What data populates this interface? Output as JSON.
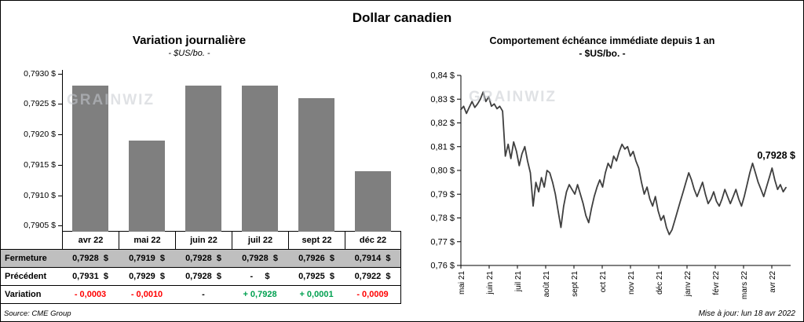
{
  "page": {
    "title": "Dollar canadien",
    "watermark": "GRAINWIZ",
    "source": "Source: CME Group",
    "updated": "Mise à jour: lun 18 avr 2022"
  },
  "colors": {
    "bar": "#7f7f7f",
    "line": "#3f3f3f",
    "negative": "#ff0000",
    "positive": "#00a050",
    "shaded_row": "#bfbfbf"
  },
  "chart_data": [
    {
      "type": "bar",
      "title": "Variation journalière",
      "subtitle": "- $US/bo. -",
      "categories": [
        "avr 22",
        "mai 22",
        "juin 22",
        "juil 22",
        "sept 22",
        "déc 22"
      ],
      "values": [
        0.7928,
        0.7919,
        0.7928,
        0.7928,
        0.7926,
        0.7914
      ],
      "ylim": [
        0.7904,
        0.79306
      ],
      "y_tick_values": [
        0.793,
        0.7925,
        0.792,
        0.7915,
        0.791,
        0.7905
      ],
      "y_tick_labels": [
        "0,7930 $",
        "0,7925 $",
        "0,7920 $",
        "0,7915 $",
        "0,7910 $",
        "0,7905 $"
      ],
      "grid": false,
      "legend": false
    },
    {
      "type": "line",
      "title": "Comportement échéance immédiate depuis 1 an",
      "subtitle": "- $US/bo. -",
      "x_labels": [
        "mai 21",
        "juin 21",
        "juil 21",
        "août 21",
        "sept 21",
        "oct 21",
        "nov 21",
        "déc 21",
        "janv 22",
        "févr 22",
        "mars 22",
        "avr 22"
      ],
      "ylim": [
        0.76,
        0.84
      ],
      "y_tick_values": [
        0.84,
        0.83,
        0.82,
        0.81,
        0.8,
        0.79,
        0.78,
        0.77,
        0.76
      ],
      "y_tick_labels": [
        "0,84 $",
        "0,83 $",
        "0,82 $",
        "0,81 $",
        "0,80 $",
        "0,79 $",
        "0,78 $",
        "0,77 $",
        "0,76 $"
      ],
      "annotation": {
        "text": "0,7928 $",
        "value": 0.7928
      },
      "grid": false,
      "legend": false,
      "values": [
        0.8256,
        0.827,
        0.824,
        0.8265,
        0.829,
        0.8265,
        0.828,
        0.83,
        0.833,
        0.829,
        0.831,
        0.827,
        0.828,
        0.826,
        0.827,
        0.825,
        0.806,
        0.811,
        0.805,
        0.812,
        0.808,
        0.802,
        0.807,
        0.81,
        0.804,
        0.799,
        0.785,
        0.795,
        0.791,
        0.797,
        0.793,
        0.8,
        0.799,
        0.795,
        0.79,
        0.783,
        0.776,
        0.785,
        0.791,
        0.794,
        0.792,
        0.79,
        0.794,
        0.79,
        0.786,
        0.781,
        0.778,
        0.784,
        0.789,
        0.793,
        0.796,
        0.793,
        0.799,
        0.803,
        0.801,
        0.806,
        0.804,
        0.808,
        0.811,
        0.809,
        0.81,
        0.806,
        0.808,
        0.804,
        0.801,
        0.795,
        0.79,
        0.793,
        0.788,
        0.785,
        0.789,
        0.783,
        0.779,
        0.781,
        0.776,
        0.773,
        0.775,
        0.779,
        0.783,
        0.787,
        0.791,
        0.795,
        0.799,
        0.796,
        0.792,
        0.789,
        0.792,
        0.795,
        0.79,
        0.786,
        0.788,
        0.791,
        0.787,
        0.785,
        0.788,
        0.792,
        0.789,
        0.786,
        0.789,
        0.792,
        0.788,
        0.785,
        0.789,
        0.794,
        0.799,
        0.803,
        0.799,
        0.795,
        0.792,
        0.789,
        0.793,
        0.797,
        0.801,
        0.796,
        0.792,
        0.794,
        0.791,
        0.7928
      ]
    }
  ],
  "table": {
    "rows": [
      {
        "label": "Fermeture",
        "shaded": true,
        "cells": [
          {
            "text": "0,7928  $"
          },
          {
            "text": "0,7919  $"
          },
          {
            "text": "0,7928  $"
          },
          {
            "text": "0,7928  $"
          },
          {
            "text": "0,7926  $"
          },
          {
            "text": "0,7914  $"
          }
        ]
      },
      {
        "label": "Précédent",
        "shaded": false,
        "cells": [
          {
            "text": "0,7931  $"
          },
          {
            "text": "0,7929  $"
          },
          {
            "text": "0,7928  $"
          },
          {
            "text": "-     $"
          },
          {
            "text": "0,7925  $"
          },
          {
            "text": "0,7922  $"
          }
        ]
      },
      {
        "label": "Variation",
        "shaded": false,
        "cells": [
          {
            "text": "- 0,0003",
            "tone": "neg"
          },
          {
            "text": "- 0,0010",
            "tone": "neg"
          },
          {
            "text": "-"
          },
          {
            "text": "+ 0,7928",
            "tone": "pos"
          },
          {
            "text": "+ 0,0001",
            "tone": "pos"
          },
          {
            "text": "- 0,0009",
            "tone": "neg"
          }
        ]
      }
    ]
  }
}
